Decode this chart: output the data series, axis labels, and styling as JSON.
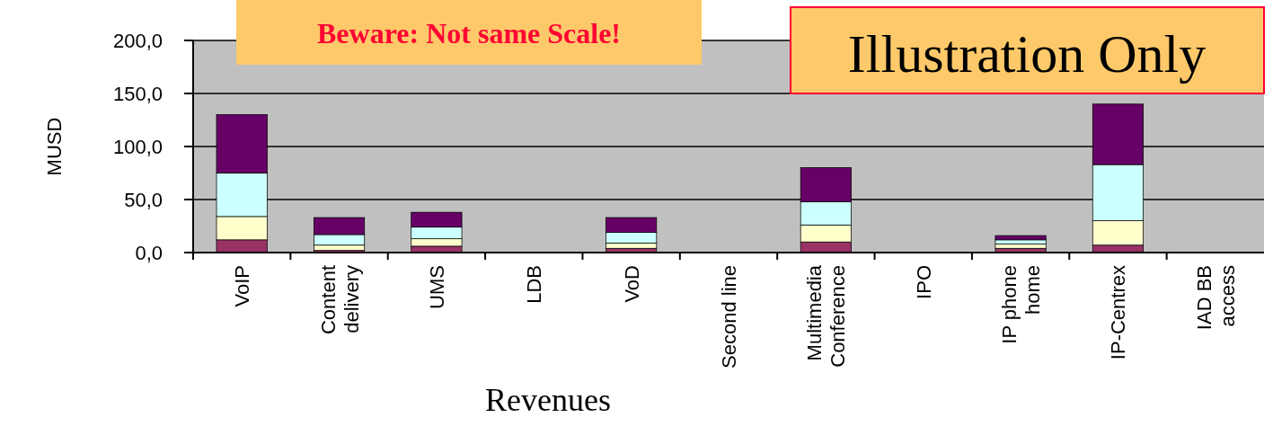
{
  "chart_data": {
    "type": "bar",
    "stacked": true,
    "ylabel": "MUSD",
    "xlabel": "Revenues",
    "annotations": [
      "Beware: Not same Scale!",
      "Illustration Only"
    ],
    "categories": [
      "VoIP",
      "Content delivery",
      "UMS",
      "LDB",
      "VoD",
      "Second line",
      "Multimedia Conference",
      "IPO",
      "IP phone home",
      "IP-Centrex",
      "IAD BB access"
    ],
    "series": [
      {
        "color": "#993366",
        "values": [
          12,
          2,
          6,
          0,
          4,
          0,
          10,
          0,
          4,
          7,
          0
        ]
      },
      {
        "color": "#ffffcc",
        "values": [
          22,
          5,
          7,
          0,
          5,
          0,
          16,
          0,
          4,
          23,
          0
        ]
      },
      {
        "color": "#ccffff",
        "values": [
          41,
          10,
          11,
          0,
          10,
          0,
          22,
          0,
          4,
          53,
          0
        ]
      },
      {
        "color": "#660066",
        "values": [
          55,
          16,
          14,
          0,
          14,
          0,
          32,
          0,
          4,
          57,
          0
        ]
      }
    ],
    "ylim": [
      0,
      200
    ],
    "yticks": [
      {
        "value": 0,
        "label": "0,0"
      },
      {
        "value": 50,
        "label": "50,0"
      },
      {
        "value": 100,
        "label": "100,0"
      },
      {
        "value": 150,
        "label": "150,0"
      },
      {
        "value": 200,
        "label": "200,0"
      }
    ],
    "grid": "y"
  }
}
